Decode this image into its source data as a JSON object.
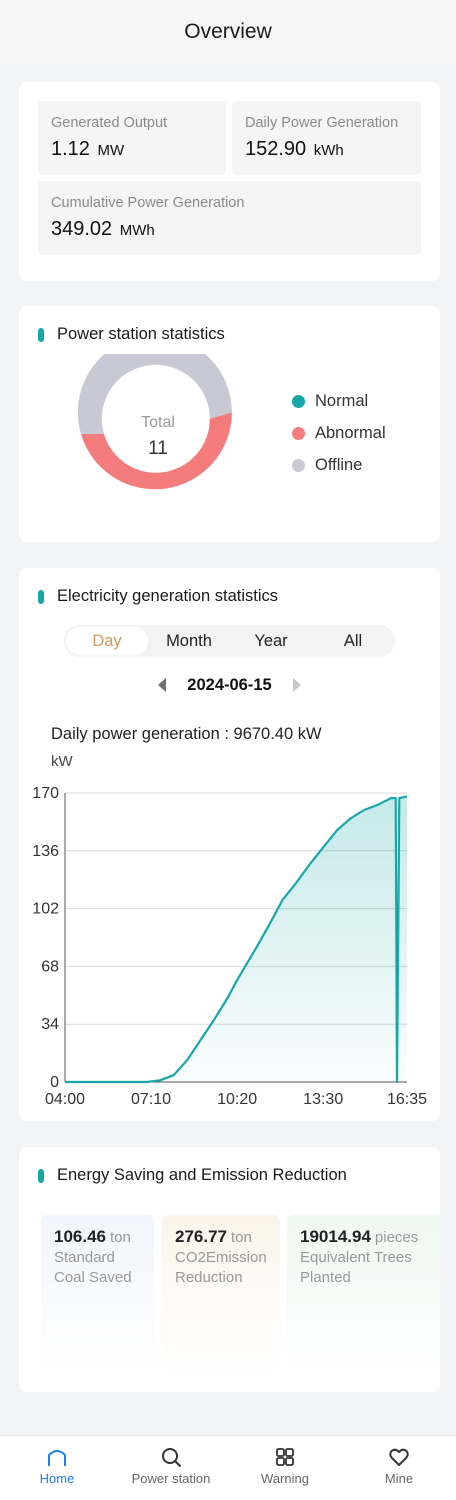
{
  "header": {
    "title": "Overview"
  },
  "overview": {
    "generated_output": {
      "label": "Generated Output",
      "value": "1.12",
      "unit": "MW"
    },
    "daily_generation": {
      "label": "Daily Power Generation",
      "value": "152.90",
      "unit": "kWh"
    },
    "cumulative_generation": {
      "label": "Cumulative Power Generation",
      "value": "349.02",
      "unit": "MWh"
    }
  },
  "station_stats": {
    "title": "Power station statistics",
    "total_label": "Total",
    "total_value": "11",
    "legend": [
      {
        "label": "Normal",
        "color": "#18a6a9"
      },
      {
        "label": "Abnormal",
        "color": "#f47c7c"
      },
      {
        "label": "Offline",
        "color": "#c9c9d6"
      }
    ],
    "chart_data": {
      "type": "pie",
      "categories": [
        "Normal",
        "Abnormal",
        "Offline"
      ],
      "values": [
        0,
        5,
        6
      ]
    }
  },
  "electric_stats": {
    "title": "Electricity generation statistics",
    "tabs": [
      {
        "label": "Day",
        "active": true
      },
      {
        "label": "Month",
        "active": false
      },
      {
        "label": "Year",
        "active": false
      },
      {
        "label": "All",
        "active": false
      }
    ],
    "date": "2024-06-15",
    "daily_summary": "Daily power generation : 9670.40 kW",
    "unit_label": "kW",
    "chart_data": {
      "type": "area",
      "ylabel": "kW",
      "ylim": [
        0,
        170
      ],
      "yticks": [
        "0",
        "34",
        "68",
        "102",
        "136",
        "170"
      ],
      "xticks": [
        "04:00",
        "07:10",
        "10:20",
        "13:30",
        "16:35"
      ],
      "x": [
        "04:00",
        "05:00",
        "06:00",
        "07:00",
        "07:30",
        "08:00",
        "08:30",
        "09:00",
        "09:30",
        "10:00",
        "10:20",
        "11:00",
        "11:30",
        "12:00",
        "12:30",
        "13:00",
        "13:30",
        "14:00",
        "14:30",
        "15:00",
        "15:30",
        "16:00",
        "16:10",
        "16:13",
        "16:18",
        "16:35"
      ],
      "values": [
        0,
        0,
        0,
        0,
        1,
        4,
        13,
        25,
        37,
        50,
        60,
        78,
        92,
        107,
        117,
        128,
        138,
        148,
        155,
        160,
        163,
        167,
        167,
        0,
        167,
        168
      ]
    }
  },
  "energy": {
    "title": "Energy Saving and Emission Reduction",
    "items": [
      {
        "value": "106.46",
        "unit": "ton",
        "label_line1": "Standard",
        "label_line2": "Coal Saved",
        "bg": "#f6f8fd"
      },
      {
        "value": "276.77",
        "unit": "ton",
        "label_line1": "CO2Emission",
        "label_line2": "Reduction",
        "bg": "#fdf8f3"
      },
      {
        "value": "19014.94",
        "unit": "pieces",
        "label_line1": "Equivalent Trees",
        "label_line2": "Planted",
        "bg": "#f3faf6"
      }
    ]
  },
  "nav": {
    "items": [
      {
        "label": "Home",
        "icon": "home-icon",
        "active": true
      },
      {
        "label": "Power station",
        "icon": "search-icon",
        "active": false
      },
      {
        "label": "Warning",
        "icon": "grid-icon",
        "active": false
      },
      {
        "label": "Mine",
        "icon": "heart-icon",
        "active": false
      }
    ]
  },
  "colors": {
    "accent": "#18a6a9",
    "active_tab": "#c79a62",
    "nav_active": "#1e7ff0"
  }
}
